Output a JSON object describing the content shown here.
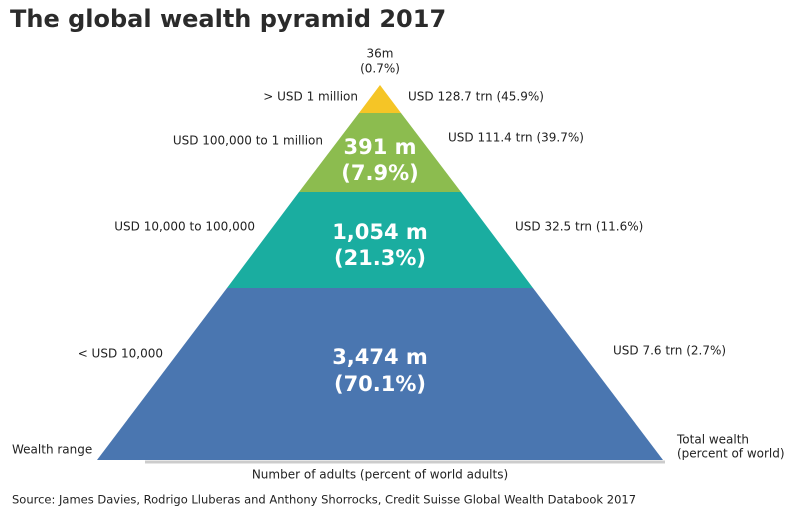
{
  "title": "The global wealth pyramid 2017",
  "levels": [
    {
      "range": "> USD 1 million",
      "adults": "36m",
      "adults_pct": "(0.7%)",
      "wealth": "USD 128.7 trn (45.9%)"
    },
    {
      "range": "USD 100,000  to 1 million",
      "adults": "391 m",
      "adults_pct": "(7.9%)",
      "wealth": "USD 111.4 trn (39.7%)"
    },
    {
      "range": "USD 10,000  to 100,000",
      "adults": "1,054 m",
      "adults_pct": "(21.3%)",
      "wealth": "USD 32.5 trn (11.6%)"
    },
    {
      "range": "<  USD 10,000",
      "adults": "3,474 m",
      "adults_pct": "(70.1%)",
      "wealth": "USD 7.6 trn (2.7%)"
    }
  ],
  "left_axis_label": "Wealth range",
  "bottom_axis_label": "Number of adults (percent of world adults)",
  "right_axis_label": [
    "Total wealth",
    "(percent of world)"
  ],
  "source": "Source: James Davies, Rodrigo Lluberas and Anthony Shorrocks, Credit Suisse Global Wealth Databook 2017"
}
